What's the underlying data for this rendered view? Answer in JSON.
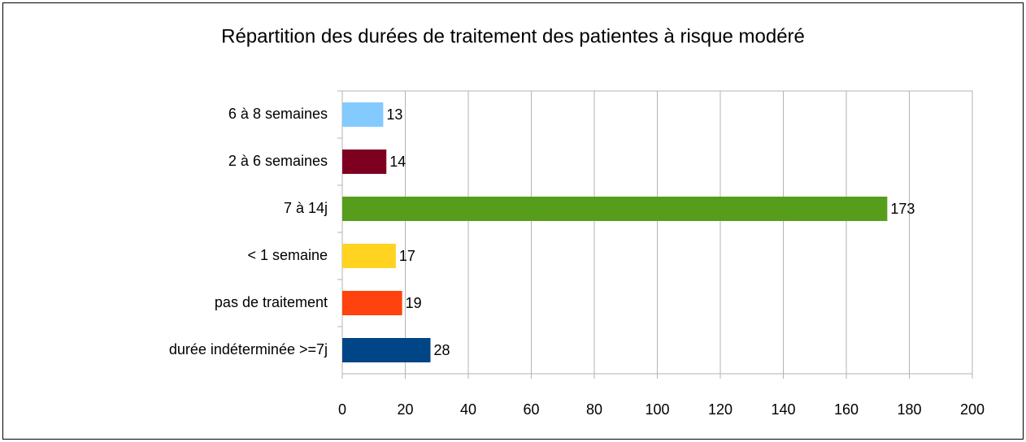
{
  "chart_data": {
    "type": "hbar",
    "title": "Répartition des durées de traitement des patientes à risque modéré",
    "categories": [
      "6 à 8 semaines",
      "2 à 6 semaines",
      "7 à 14j",
      "< 1 semaine",
      "pas de traitement",
      "durée indéterminée >=7j"
    ],
    "values": [
      13,
      14,
      173,
      17,
      19,
      28
    ],
    "colors": [
      "#83caff",
      "#7e0021",
      "#579d1c",
      "#ffd320",
      "#ff420e",
      "#004586"
    ],
    "xlim": [
      0,
      200
    ],
    "xticks": [
      0,
      20,
      40,
      60,
      80,
      100,
      120,
      140,
      160,
      180,
      200
    ],
    "grid": true
  }
}
